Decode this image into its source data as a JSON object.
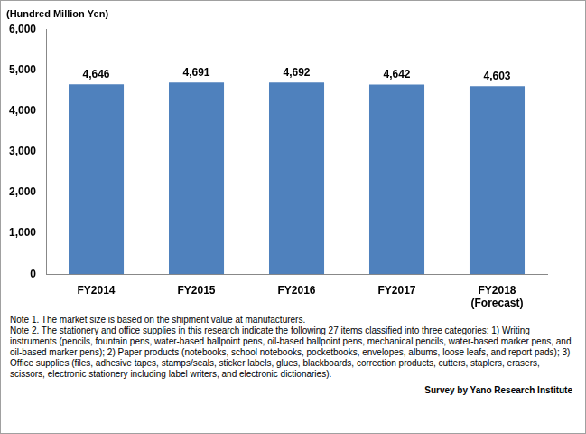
{
  "chart_data": {
    "type": "bar",
    "ylabel": "(Hundred Million Yen)",
    "categories": [
      "FY2014",
      "FY2015",
      "FY2016",
      "FY2017",
      "FY2018\n(Forecast)"
    ],
    "values": [
      4646,
      4691,
      4692,
      4642,
      4603
    ],
    "value_labels": [
      "4,646",
      "4,691",
      "4,692",
      "4,642",
      "4,603"
    ],
    "data_labels": true,
    "color": "#4f81bd",
    "ylim": [
      0,
      6000
    ],
    "yticks": [
      0,
      {
        "value": 1000,
        "label": "1,000"
      },
      {
        "value": 2000,
        "label": "2,000"
      },
      {
        "value": 3000,
        "label": "3,000"
      },
      {
        "value": 4000,
        "label": "4,000"
      },
      {
        "value": 5000,
        "label": "5,000"
      },
      {
        "value": 6000,
        "label": "6,000"
      }
    ],
    "grid": false,
    "notes": [
      "Note 1. The market size is based on the shipment value at manufacturers.",
      "Note 2. The stationery and office supplies in this research indicate the following 27 items classified into three categories:  1) Writing instruments (pencils, fountain pens, water-based ballpoint pens, oil-based ballpoint pens, mechanical pencils, water-based marker pens, and oil-based marker pens); 2) Paper products (notebooks, school notebooks, pocketbooks, envelopes, albums, loose leafs, and report pads); 3) Office supplies (files, adhesive tapes, stamps/seals, sticker labels, glues, blackboards, correction products, cutters, staplers, erasers, scissors, electronic stationery including label writers, and electronic dictionaries)."
    ],
    "source": "Survey by Yano Research Institute"
  }
}
